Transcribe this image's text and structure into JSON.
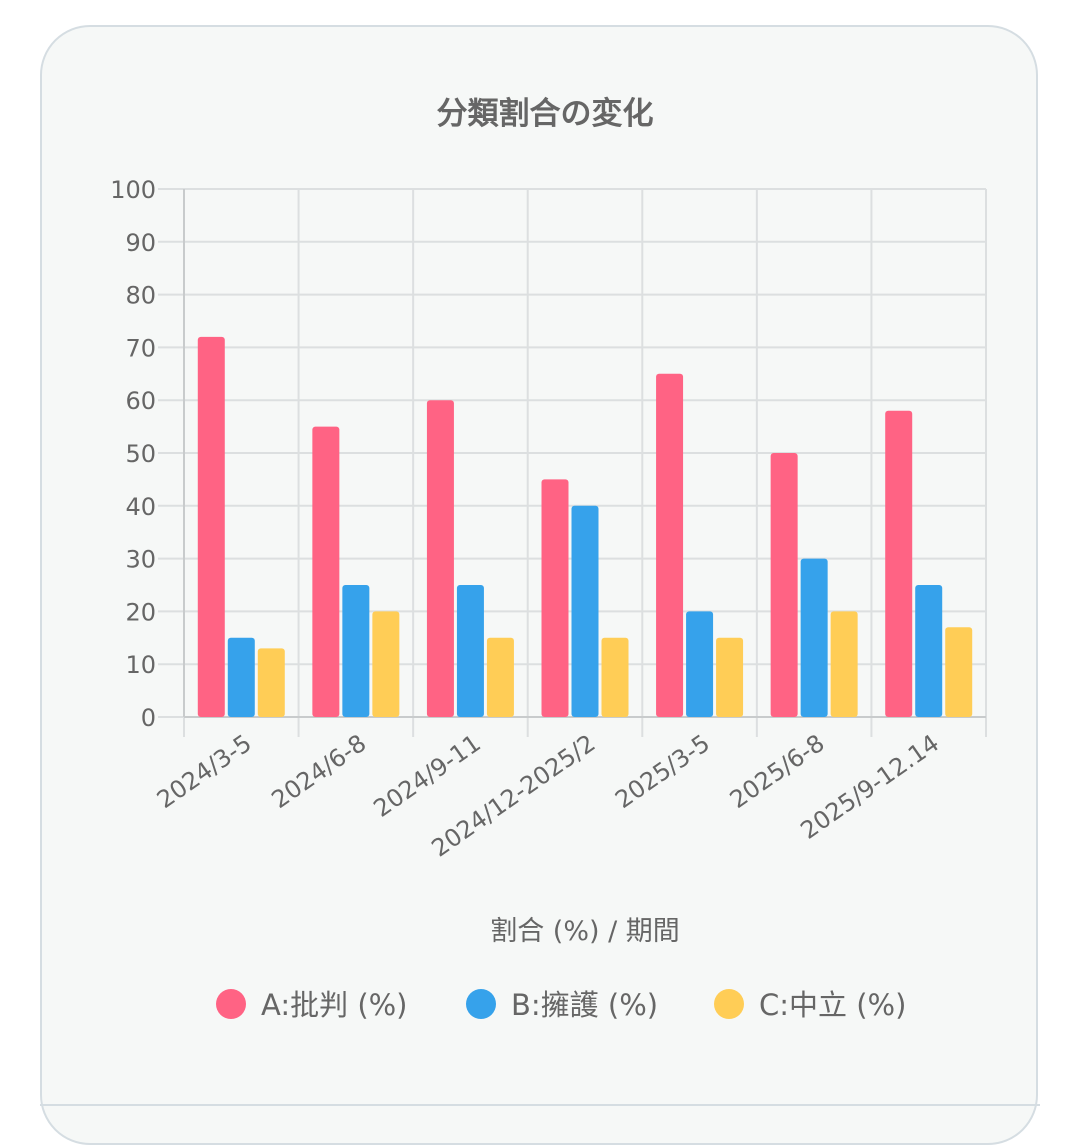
{
  "chart_data": {
    "type": "bar",
    "title": "分類割合の変化",
    "xlabel": "割合 (%) / 期間",
    "ylabel": "",
    "ylim": [
      0,
      100
    ],
    "yticks": [
      0,
      10,
      20,
      30,
      40,
      50,
      60,
      70,
      80,
      90,
      100
    ],
    "grid": true,
    "legend_placement": "bottom",
    "categories": [
      "2024/3-5",
      "2024/6-8",
      "2024/9-11",
      "2024/12-2025/2",
      "2025/3-5",
      "2025/6-8",
      "2025/9-12.14"
    ],
    "series": [
      {
        "name": "A:批判 (%)",
        "color": "#ff6384",
        "values": [
          72,
          55,
          60,
          45,
          65,
          50,
          58
        ]
      },
      {
        "name": "B:擁護 (%)",
        "color": "#36a2eb",
        "values": [
          15,
          25,
          25,
          40,
          20,
          30,
          25
        ]
      },
      {
        "name": "C:中立 (%)",
        "color": "#ffcd56",
        "values": [
          13,
          20,
          15,
          15,
          15,
          20,
          17
        ]
      }
    ]
  }
}
